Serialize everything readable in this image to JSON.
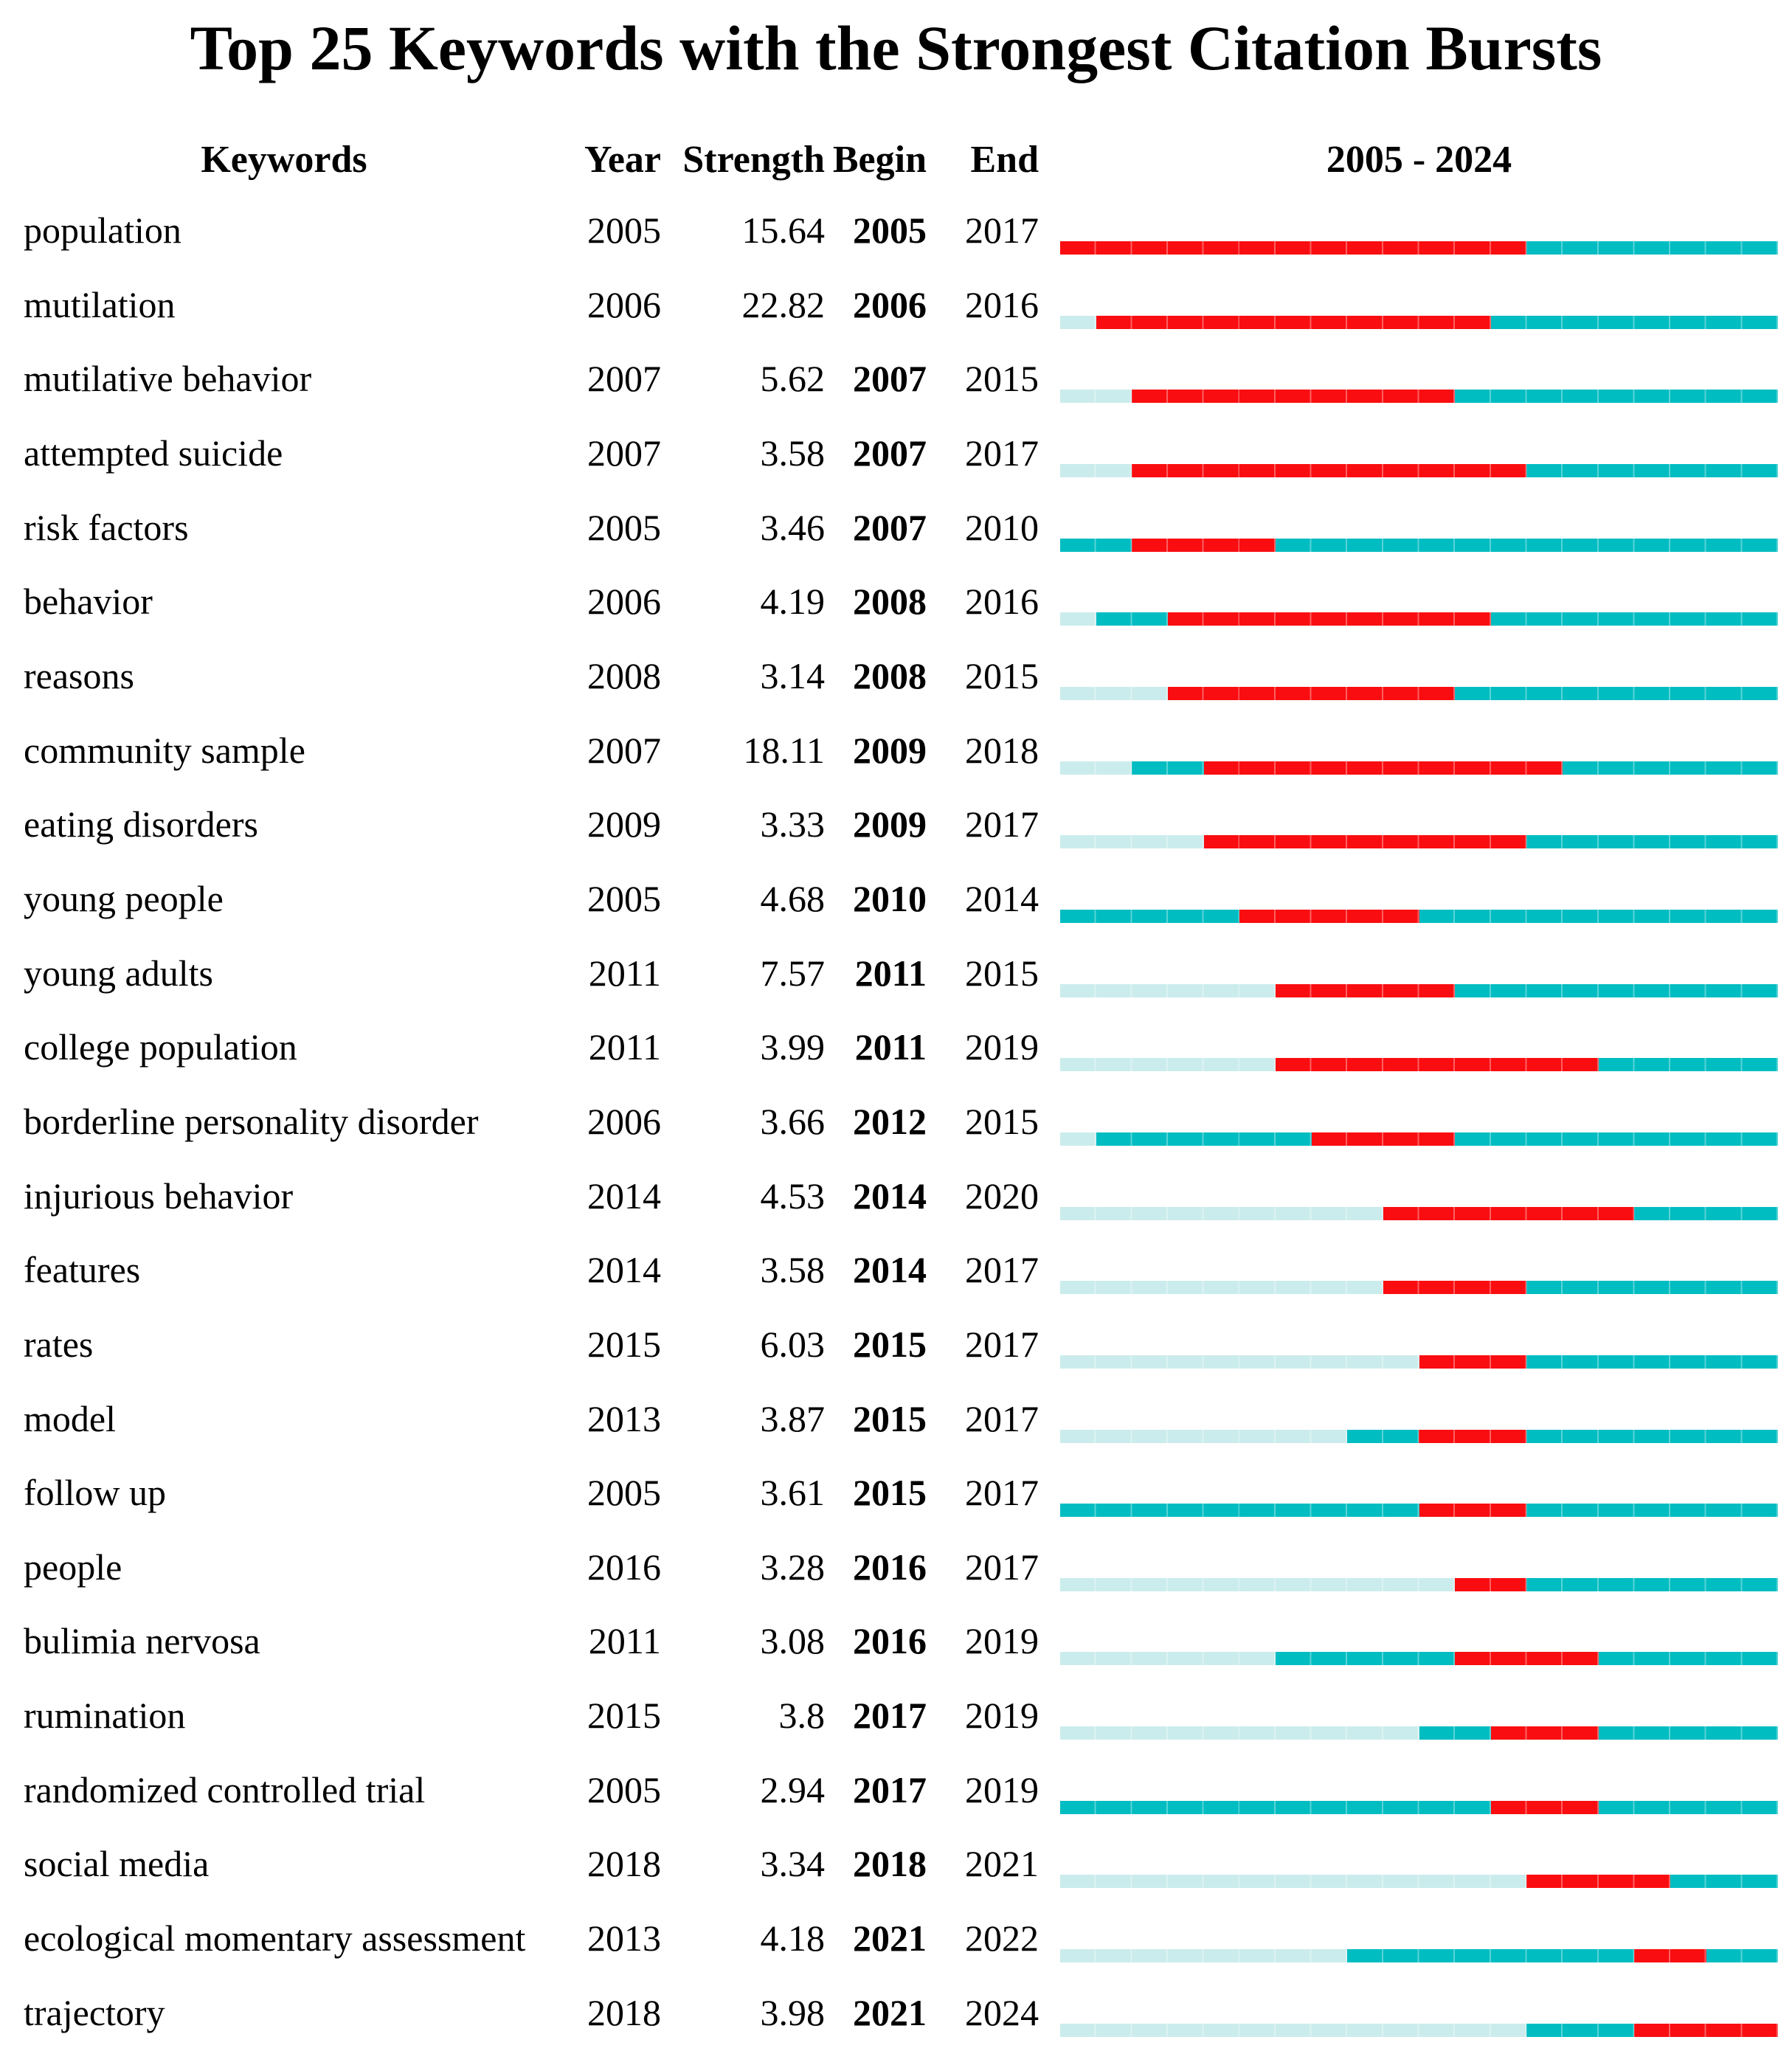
{
  "chart_data": {
    "type": "table",
    "title": "Top 25 Keywords with the Strongest Citation Bursts",
    "columns": [
      "Keywords",
      "Year",
      "Strength",
      "Begin",
      "End",
      "2005 - 2024"
    ],
    "timeline_range": [
      2005,
      2024
    ],
    "timeline_header": "2005 - 2024",
    "legend": {
      "burst_color": "#fa0d10",
      "active_color": "#00bdc2",
      "pre_appearance_color": "#cbecec"
    },
    "rows": [
      {
        "keyword": "population",
        "year": 2005,
        "strength": "15.64",
        "begin": 2005,
        "end": 2017
      },
      {
        "keyword": "mutilation",
        "year": 2006,
        "strength": "22.82",
        "begin": 2006,
        "end": 2016
      },
      {
        "keyword": "mutilative behavior",
        "year": 2007,
        "strength": "5.62",
        "begin": 2007,
        "end": 2015
      },
      {
        "keyword": "attempted suicide",
        "year": 2007,
        "strength": "3.58",
        "begin": 2007,
        "end": 2017
      },
      {
        "keyword": "risk factors",
        "year": 2005,
        "strength": "3.46",
        "begin": 2007,
        "end": 2010
      },
      {
        "keyword": "behavior",
        "year": 2006,
        "strength": "4.19",
        "begin": 2008,
        "end": 2016
      },
      {
        "keyword": "reasons",
        "year": 2008,
        "strength": "3.14",
        "begin": 2008,
        "end": 2015
      },
      {
        "keyword": "community sample",
        "year": 2007,
        "strength": "18.11",
        "begin": 2009,
        "end": 2018
      },
      {
        "keyword": "eating disorders",
        "year": 2009,
        "strength": "3.33",
        "begin": 2009,
        "end": 2017
      },
      {
        "keyword": "young people",
        "year": 2005,
        "strength": "4.68",
        "begin": 2010,
        "end": 2014
      },
      {
        "keyword": "young adults",
        "year": 2011,
        "strength": "7.57",
        "begin": 2011,
        "end": 2015
      },
      {
        "keyword": "college population",
        "year": 2011,
        "strength": "3.99",
        "begin": 2011,
        "end": 2019
      },
      {
        "keyword": "borderline personality disorder",
        "year": 2006,
        "strength": "3.66",
        "begin": 2012,
        "end": 2015
      },
      {
        "keyword": "injurious behavior",
        "year": 2014,
        "strength": "4.53",
        "begin": 2014,
        "end": 2020
      },
      {
        "keyword": "features",
        "year": 2014,
        "strength": "3.58",
        "begin": 2014,
        "end": 2017
      },
      {
        "keyword": "rates",
        "year": 2015,
        "strength": "6.03",
        "begin": 2015,
        "end": 2017
      },
      {
        "keyword": "model",
        "year": 2013,
        "strength": "3.87",
        "begin": 2015,
        "end": 2017
      },
      {
        "keyword": "follow up",
        "year": 2005,
        "strength": "3.61",
        "begin": 2015,
        "end": 2017
      },
      {
        "keyword": "people",
        "year": 2016,
        "strength": "3.28",
        "begin": 2016,
        "end": 2017
      },
      {
        "keyword": "bulimia nervosa",
        "year": 2011,
        "strength": "3.08",
        "begin": 2016,
        "end": 2019
      },
      {
        "keyword": "rumination",
        "year": 2015,
        "strength": "3.8",
        "begin": 2017,
        "end": 2019
      },
      {
        "keyword": "randomized controlled trial",
        "year": 2005,
        "strength": "2.94",
        "begin": 2017,
        "end": 2019
      },
      {
        "keyword": "social media",
        "year": 2018,
        "strength": "3.34",
        "begin": 2018,
        "end": 2021
      },
      {
        "keyword": "ecological momentary assessment",
        "year": 2013,
        "strength": "4.18",
        "begin": 2021,
        "end": 2022
      },
      {
        "keyword": "trajectory",
        "year": 2018,
        "strength": "3.98",
        "begin": 2021,
        "end": 2024
      }
    ]
  }
}
